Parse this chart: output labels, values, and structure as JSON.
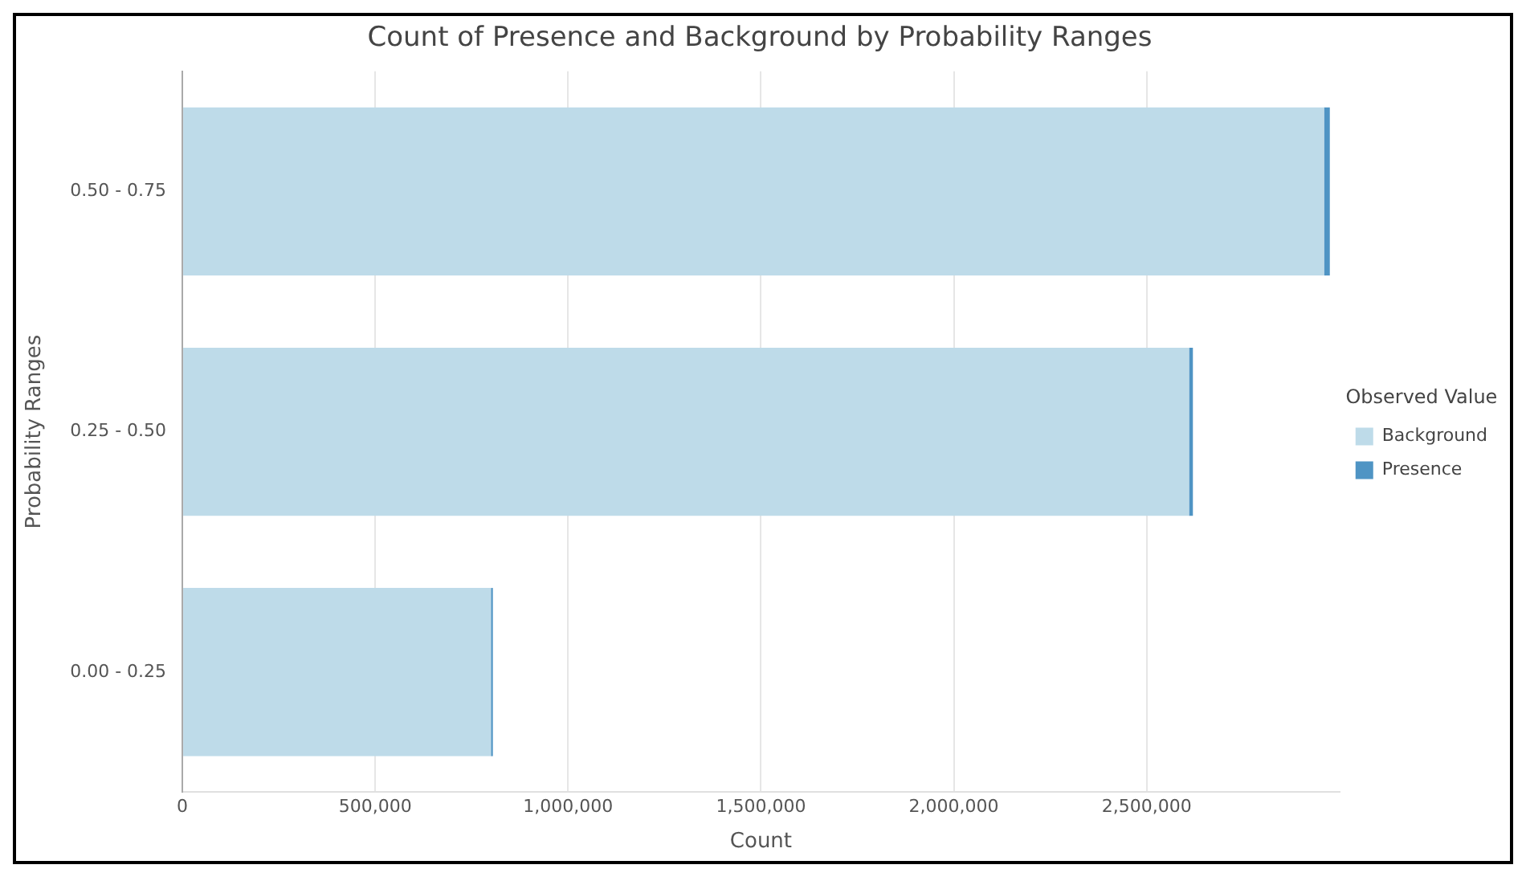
{
  "chart_data": {
    "type": "bar",
    "orientation": "horizontal",
    "stacked": true,
    "title": "Count of Presence and Background by Probability Ranges",
    "xlabel": "Count",
    "ylabel": "Probability Ranges",
    "legend_title": "Observed Value",
    "legend": "right",
    "categories": [
      "0.50 - 0.75",
      "0.25 - 0.50",
      "0.00 - 0.25"
    ],
    "series": [
      {
        "name": "Background",
        "color": "#bedbe9",
        "values": [
          2960000,
          2610000,
          800000
        ]
      },
      {
        "name": "Presence",
        "color": "#4f94c4",
        "values": [
          15000,
          10000,
          5000
        ]
      }
    ],
    "xlim": [
      0,
      3000000
    ],
    "xticks": [
      {
        "value": 0,
        "label": "0"
      },
      {
        "value": 500000,
        "label": "500,000"
      },
      {
        "value": 1000000,
        "label": "1,000,000"
      },
      {
        "value": 1500000,
        "label": "1,500,000"
      },
      {
        "value": 2000000,
        "label": "2,000,000"
      },
      {
        "value": 2500000,
        "label": "2,500,000"
      }
    ],
    "grid": "x"
  }
}
